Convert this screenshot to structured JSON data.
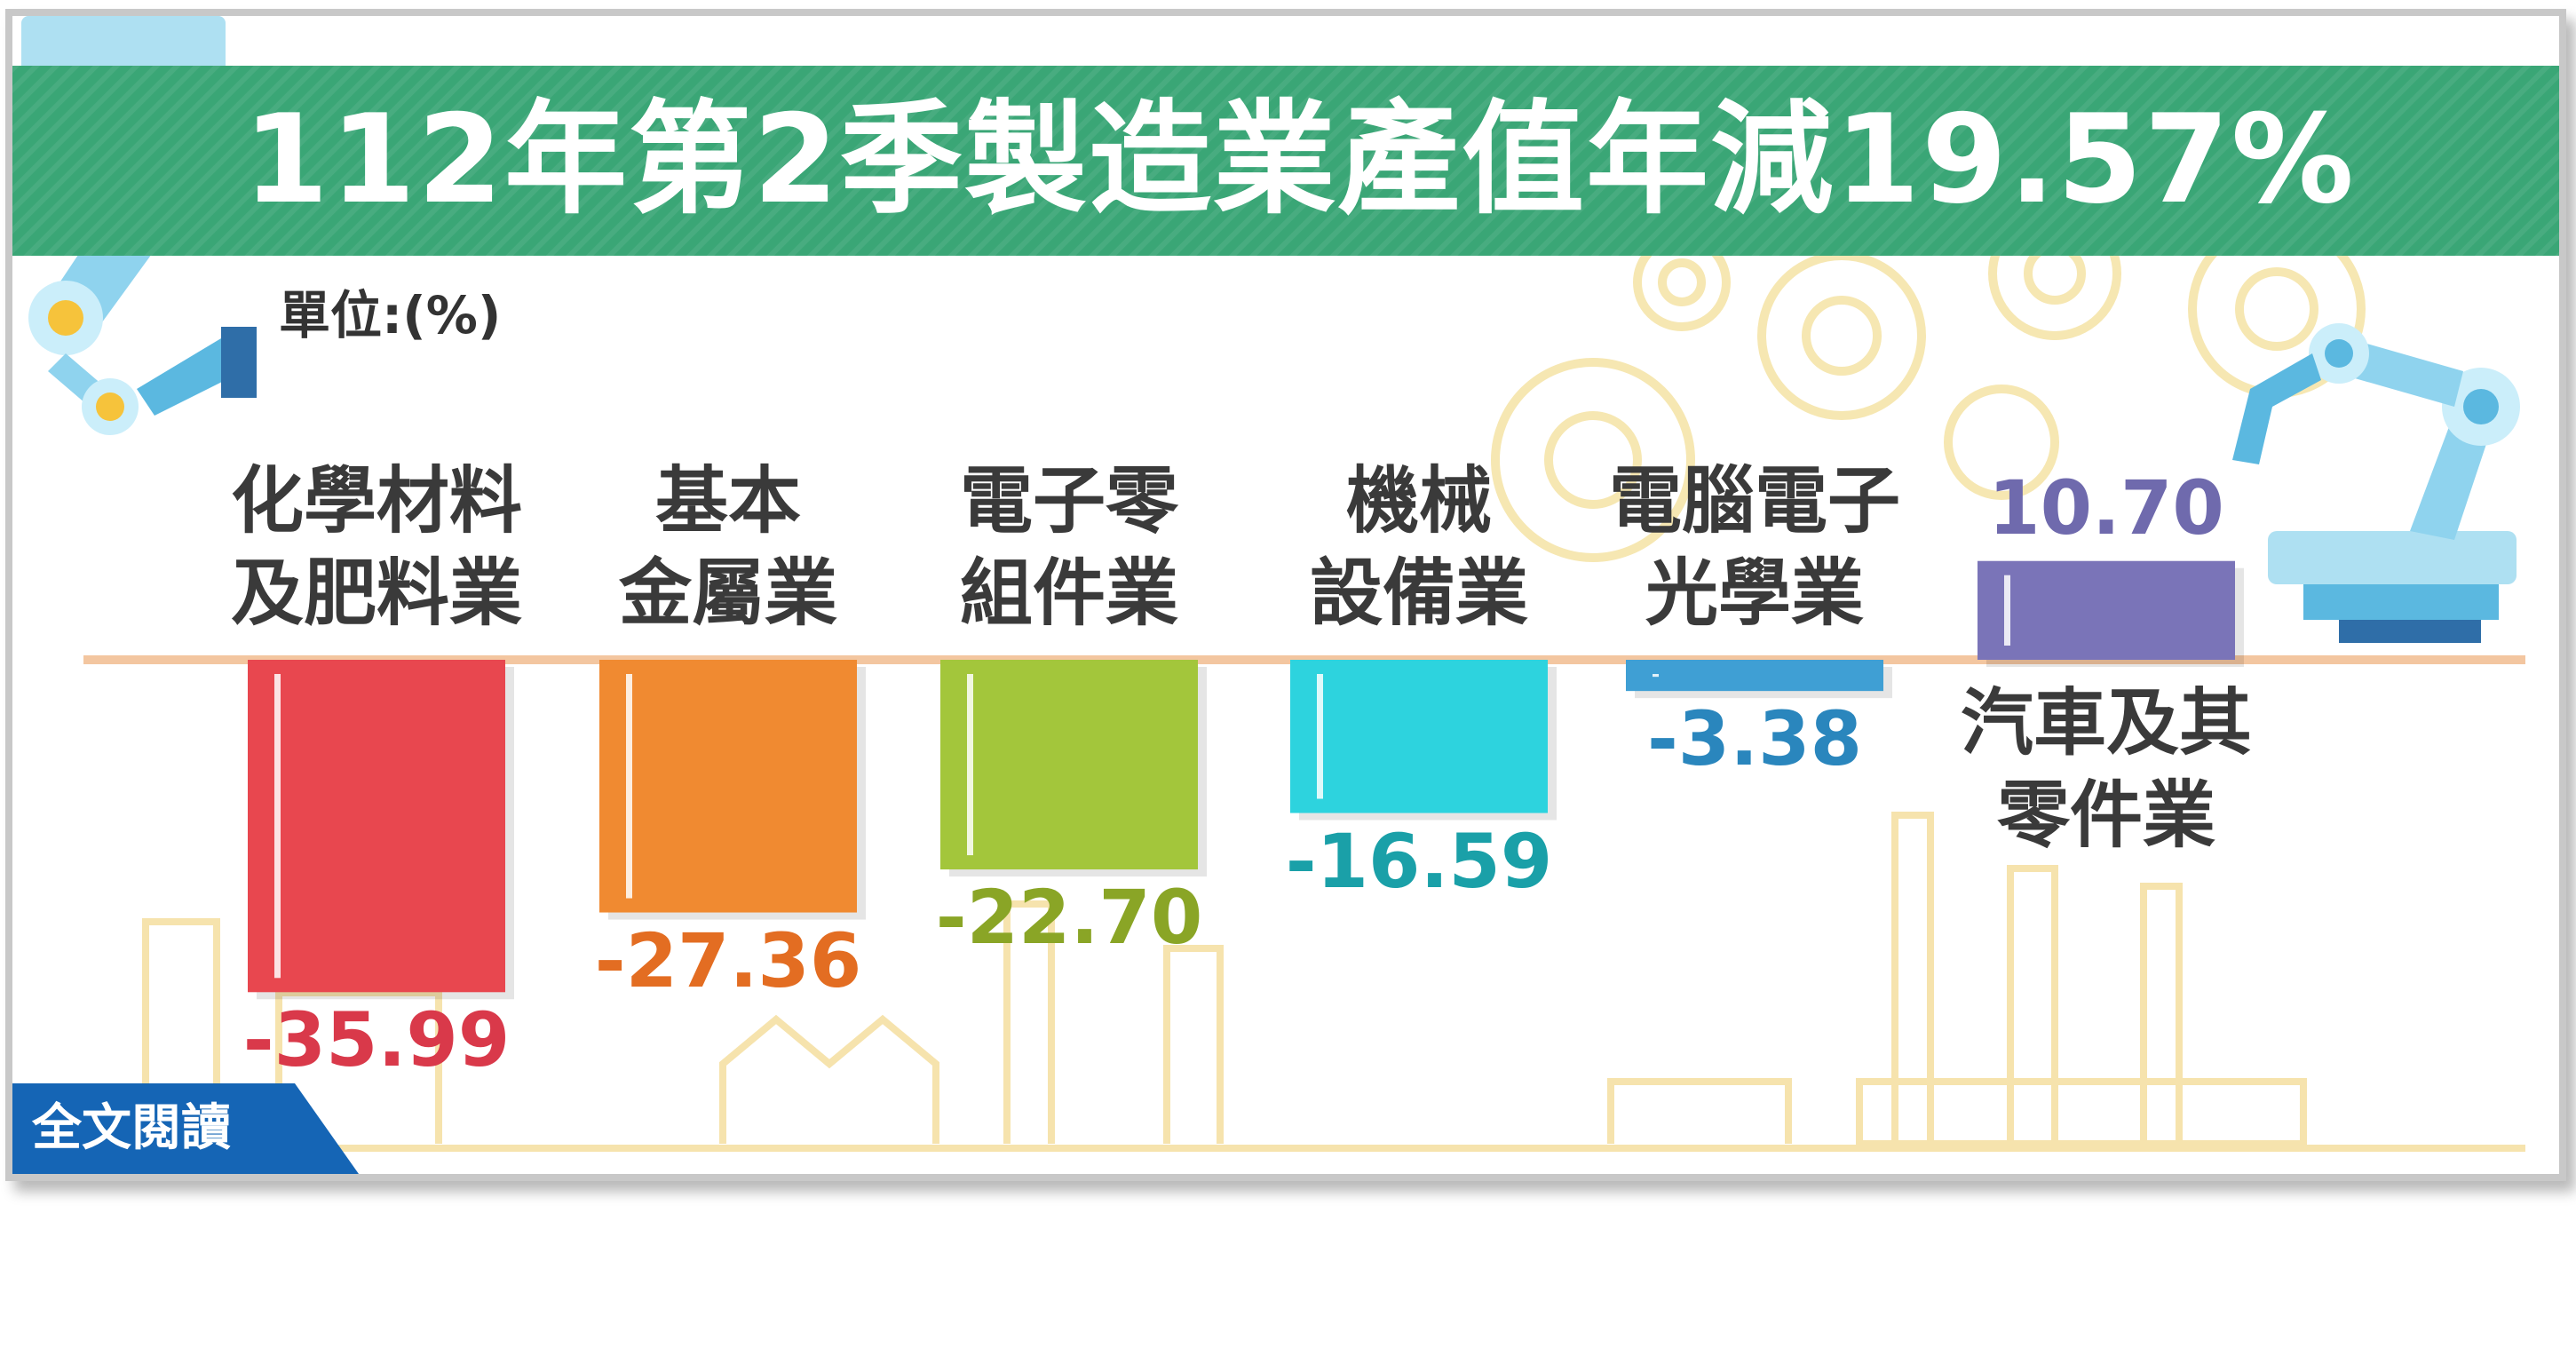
{
  "title": "112年第2季製造業產值年減19.57%",
  "unit": "單位:(%)",
  "read_more": "全文閱讀",
  "colors": {
    "banner": "#3aa676",
    "axis": "#f3c6a0",
    "read_more": "#1565b5"
  },
  "chart_data": {
    "type": "bar",
    "title": "112年第2季製造業產值年減19.57%",
    "ylabel": "單位:(%)",
    "xlabel": "",
    "categories": [
      "化學材料及肥料業",
      "基本金屬業",
      "電子零組件業",
      "機械設備業",
      "電腦電子光學業",
      "汽車及其零件業"
    ],
    "category_lines": [
      [
        "化學材料",
        "及肥料業"
      ],
      [
        "基本",
        "金屬業"
      ],
      [
        "電子零",
        "組件業"
      ],
      [
        "機械",
        "設備業"
      ],
      [
        "電腦電子",
        "光學業"
      ],
      [
        "汽車及其",
        "零件業"
      ]
    ],
    "values": [
      -35.99,
      -27.36,
      -22.7,
      -16.59,
      -3.38,
      10.7
    ],
    "value_labels": [
      "-35.99",
      "-27.36",
      "-22.70",
      "-16.59",
      "-3.38",
      "10.70"
    ],
    "colors": [
      "#e8474f",
      "#f08a31",
      "#a3c63b",
      "#2dd3de",
      "#3f9fd4",
      "#7a74b8"
    ],
    "label_colors": [
      "#d9394a",
      "#e36d22",
      "#8aa526",
      "#1aa0a8",
      "#2a86bd",
      "#6f6aad"
    ],
    "ylim": [
      -40,
      12
    ],
    "grid": false,
    "legend": "none"
  }
}
